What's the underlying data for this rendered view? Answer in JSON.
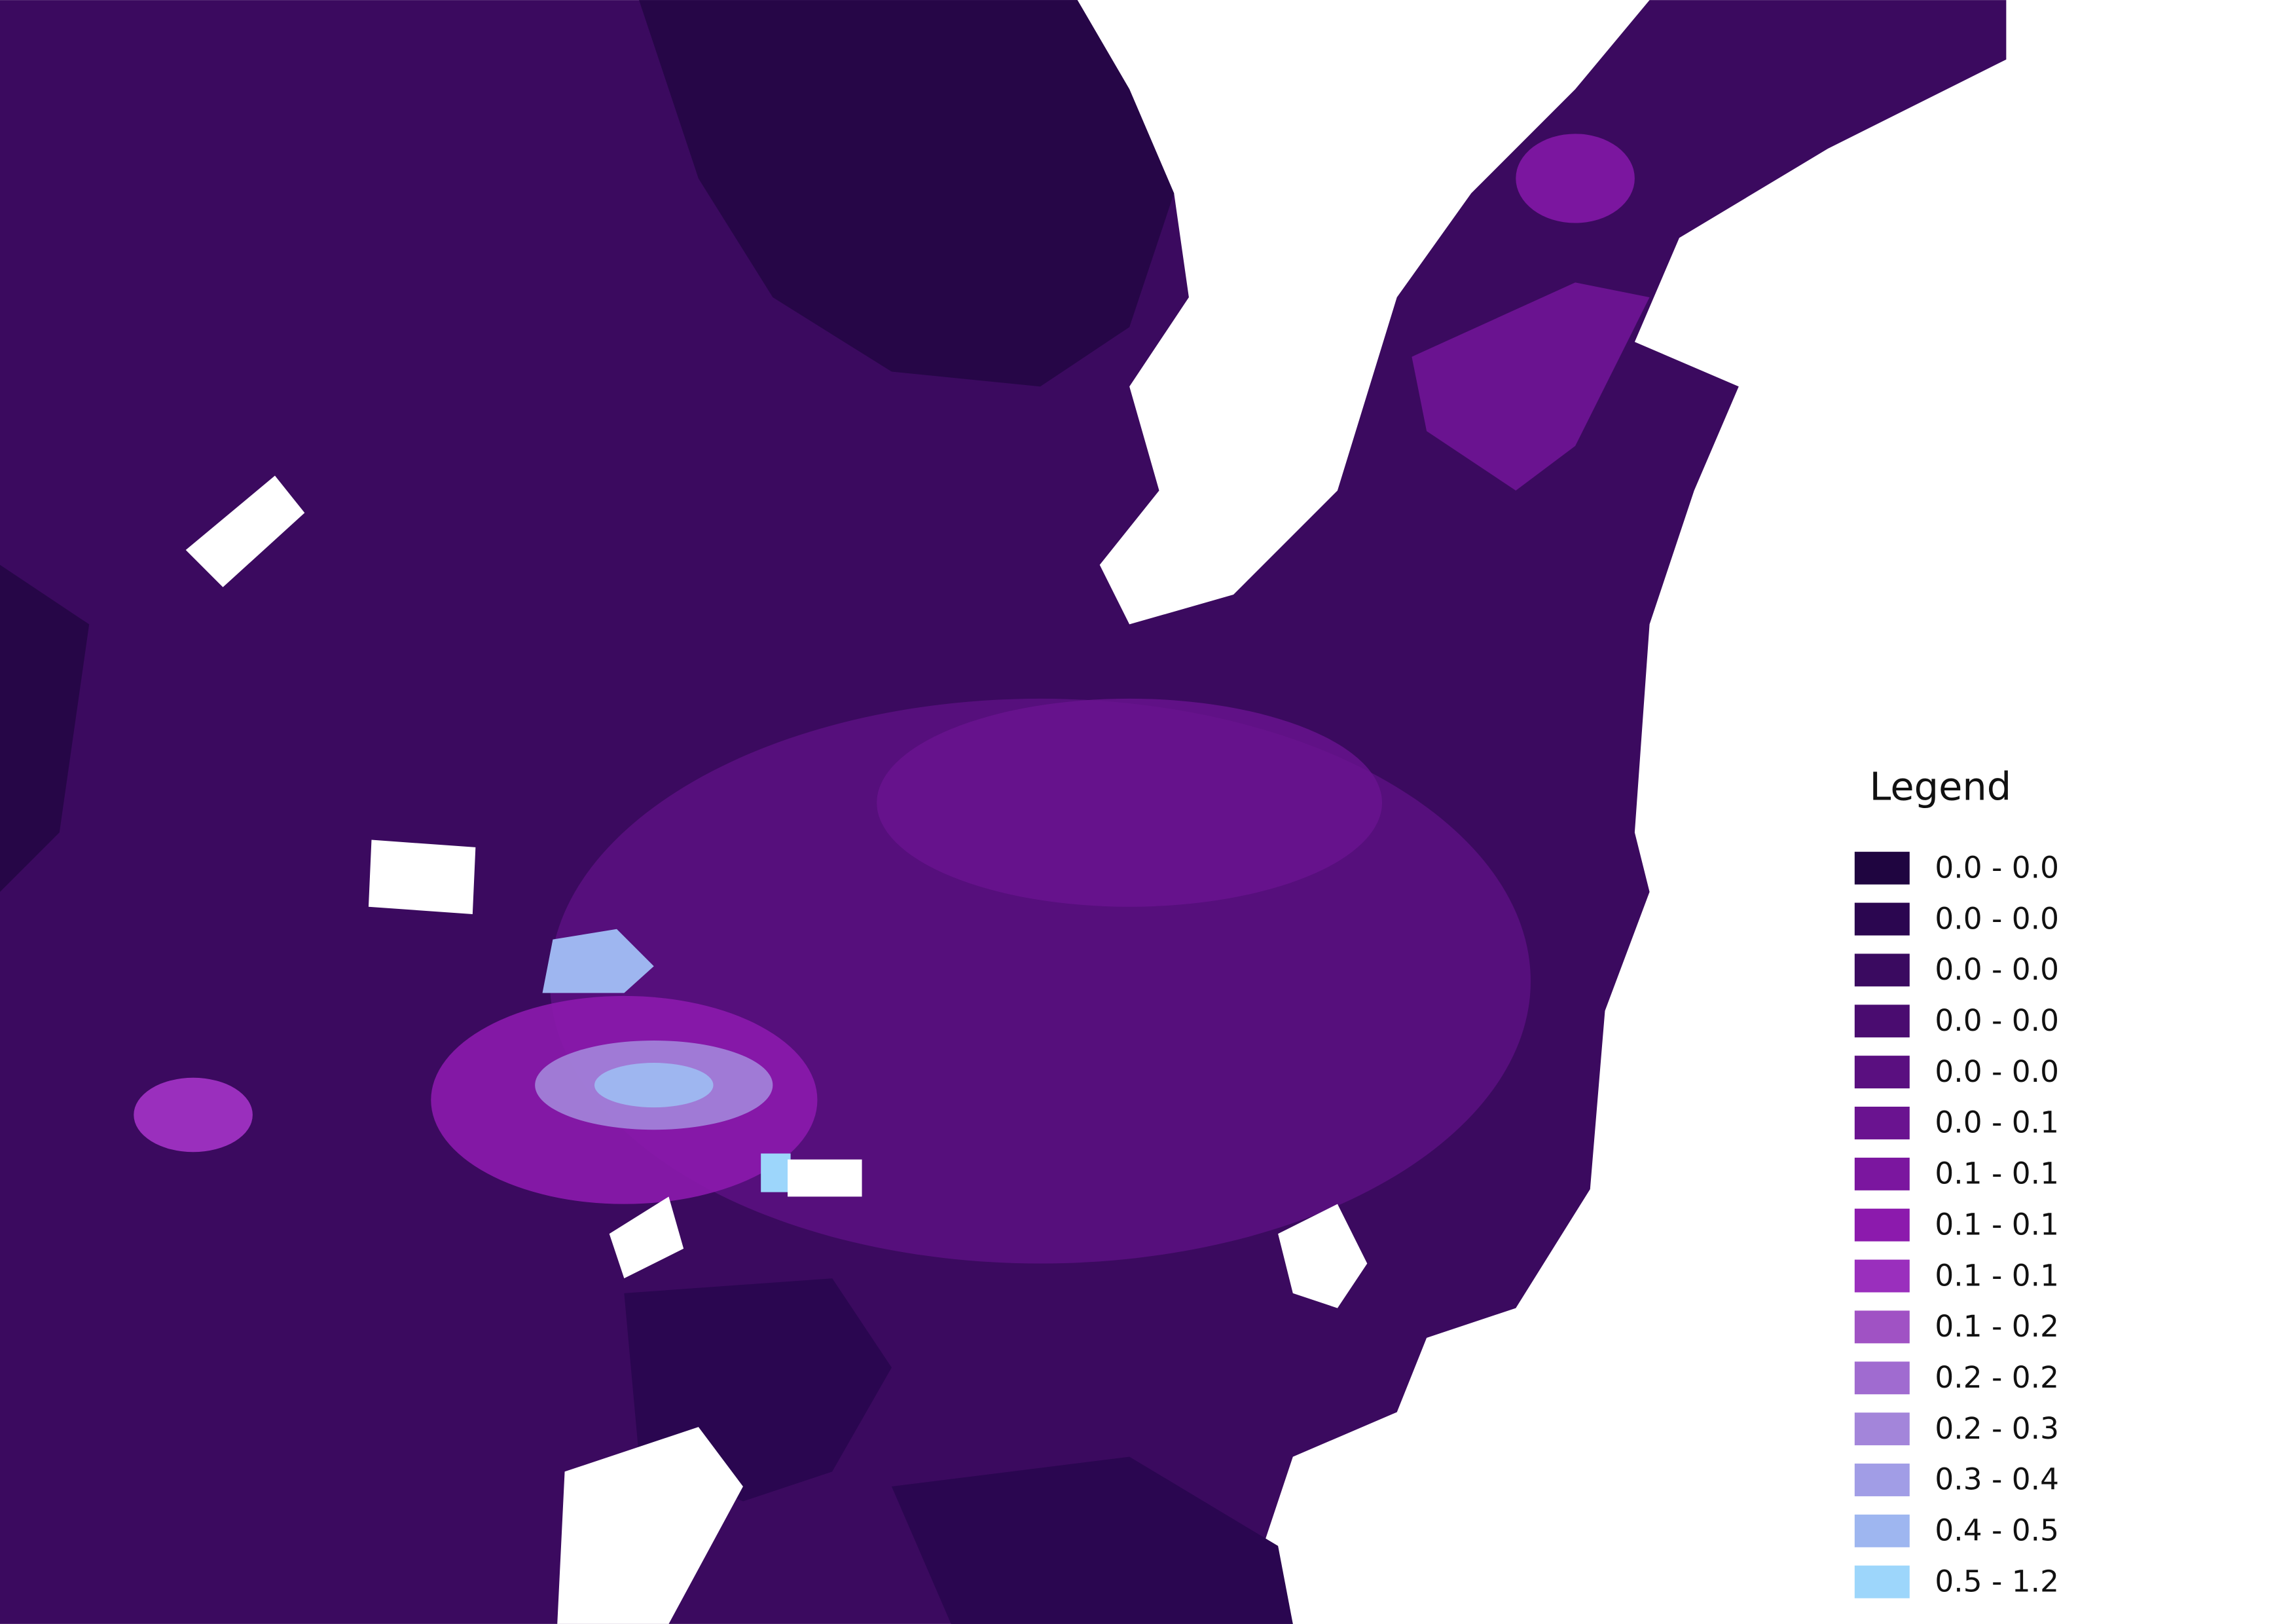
{
  "legend": {
    "title": "Legend",
    "items": [
      {
        "label": "0.0 - 0.0",
        "color": "#1f0540"
      },
      {
        "label": "0.0 - 0.0",
        "color": "#2b0650"
      },
      {
        "label": "0.0 - 0.0",
        "color": "#3a0a60"
      },
      {
        "label": "0.0 - 0.0",
        "color": "#4a0c70"
      },
      {
        "label": "0.0 - 0.0",
        "color": "#5a0f80"
      },
      {
        "label": "0.0 - 0.1",
        "color": "#6a1390"
      },
      {
        "label": "0.1 - 0.1",
        "color": "#7b169f"
      },
      {
        "label": "0.1 - 0.1",
        "color": "#8c1aad"
      },
      {
        "label": "0.1 - 0.1",
        "color": "#9a2fbd"
      },
      {
        "label": "0.1 - 0.2",
        "color": "#a052c4"
      },
      {
        "label": "0.2 - 0.2",
        "color": "#a06bd0"
      },
      {
        "label": "0.2 - 0.3",
        "color": "#a385da"
      },
      {
        "label": "0.3 - 0.4",
        "color": "#a19de6"
      },
      {
        "label": "0.4 - 0.5",
        "color": "#9eb6f0"
      },
      {
        "label": "0.5 - 1.2",
        "color": "#9dd6fb"
      }
    ]
  }
}
